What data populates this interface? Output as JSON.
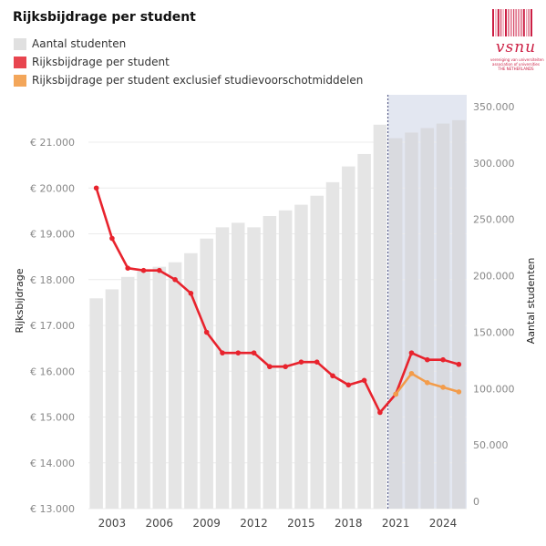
{
  "chart_data": {
    "type": "bar+line",
    "title": "Rijksbijdrage per student",
    "legend": [
      {
        "label": "Aantal studenten",
        "color": "#e0e0e0",
        "marker": "square"
      },
      {
        "label": "Rijksbijdrage per student",
        "color": "#e8454f",
        "marker": "square"
      },
      {
        "label": "Rijksbijdrage per student exclusief studievoorschotmiddelen",
        "color": "#f3a65a",
        "marker": "square"
      }
    ],
    "legend_position": "top-left",
    "x": [
      2002,
      2003,
      2004,
      2005,
      2006,
      2007,
      2008,
      2009,
      2010,
      2011,
      2012,
      2013,
      2014,
      2015,
      2016,
      2017,
      2018,
      2019,
      2020,
      2021,
      2022,
      2023,
      2024,
      2025
    ],
    "x_ticks": [
      2003,
      2006,
      2009,
      2012,
      2015,
      2018,
      2021,
      2024
    ],
    "forecast_from": 2021,
    "bars": {
      "name": "Aantal studenten",
      "axis": "right",
      "color": "#e5e5e5",
      "forecast_color": "#d9dadf",
      "values": [
        180000,
        188000,
        199000,
        204000,
        208000,
        212000,
        220000,
        233000,
        243000,
        247000,
        243000,
        253000,
        258000,
        263000,
        271000,
        283000,
        297000,
        308000,
        334000,
        322000,
        327000,
        331000,
        335000,
        338000
      ]
    },
    "series": [
      {
        "name": "Rijksbijdrage per student",
        "axis": "left",
        "color": "#e8232d",
        "values": [
          20000,
          18900,
          18250,
          18200,
          18200,
          18000,
          17700,
          16850,
          16400,
          16400,
          16400,
          16100,
          16100,
          16200,
          16200,
          15900,
          15700,
          15800,
          15100,
          15500,
          16400,
          16250,
          16250,
          16150
        ]
      },
      {
        "name": "Rijksbijdrage per student exclusief studievoorschotmiddelen",
        "axis": "left",
        "color": "#f39c4a",
        "x": [
          2021,
          2022,
          2023,
          2024,
          2025
        ],
        "values": [
          15500,
          15950,
          15750,
          15650,
          15550
        ]
      }
    ],
    "ylabel": "Rijksbijdrage",
    "ylim": [
      13000,
      21400
    ],
    "y_ticks": [
      "€ 13.000",
      "€ 14.000",
      "€ 15.000",
      "€ 16.000",
      "€ 17.000",
      "€ 18.000",
      "€ 19.000",
      "€ 20.000",
      "€ 21.000"
    ],
    "y_tick_values": [
      13000,
      14000,
      15000,
      16000,
      17000,
      18000,
      19000,
      20000,
      21000
    ],
    "y2label": "Aantal studenten",
    "y2lim": [
      0,
      350000
    ],
    "y2_ticks": [
      "0",
      "50.000",
      "100.000",
      "150.000",
      "200.000",
      "250.000",
      "300.000",
      "350.000"
    ],
    "y2_tick_values": [
      0,
      50000,
      100000,
      150000,
      200000,
      250000,
      300000,
      350000
    ],
    "grid": "horizontal"
  },
  "logo": {
    "word": "vsnu",
    "lines": [
      "vereniging van universiteiten",
      "association of universities",
      "THE NETHERLANDS"
    ],
    "color": "#cc1f44"
  }
}
